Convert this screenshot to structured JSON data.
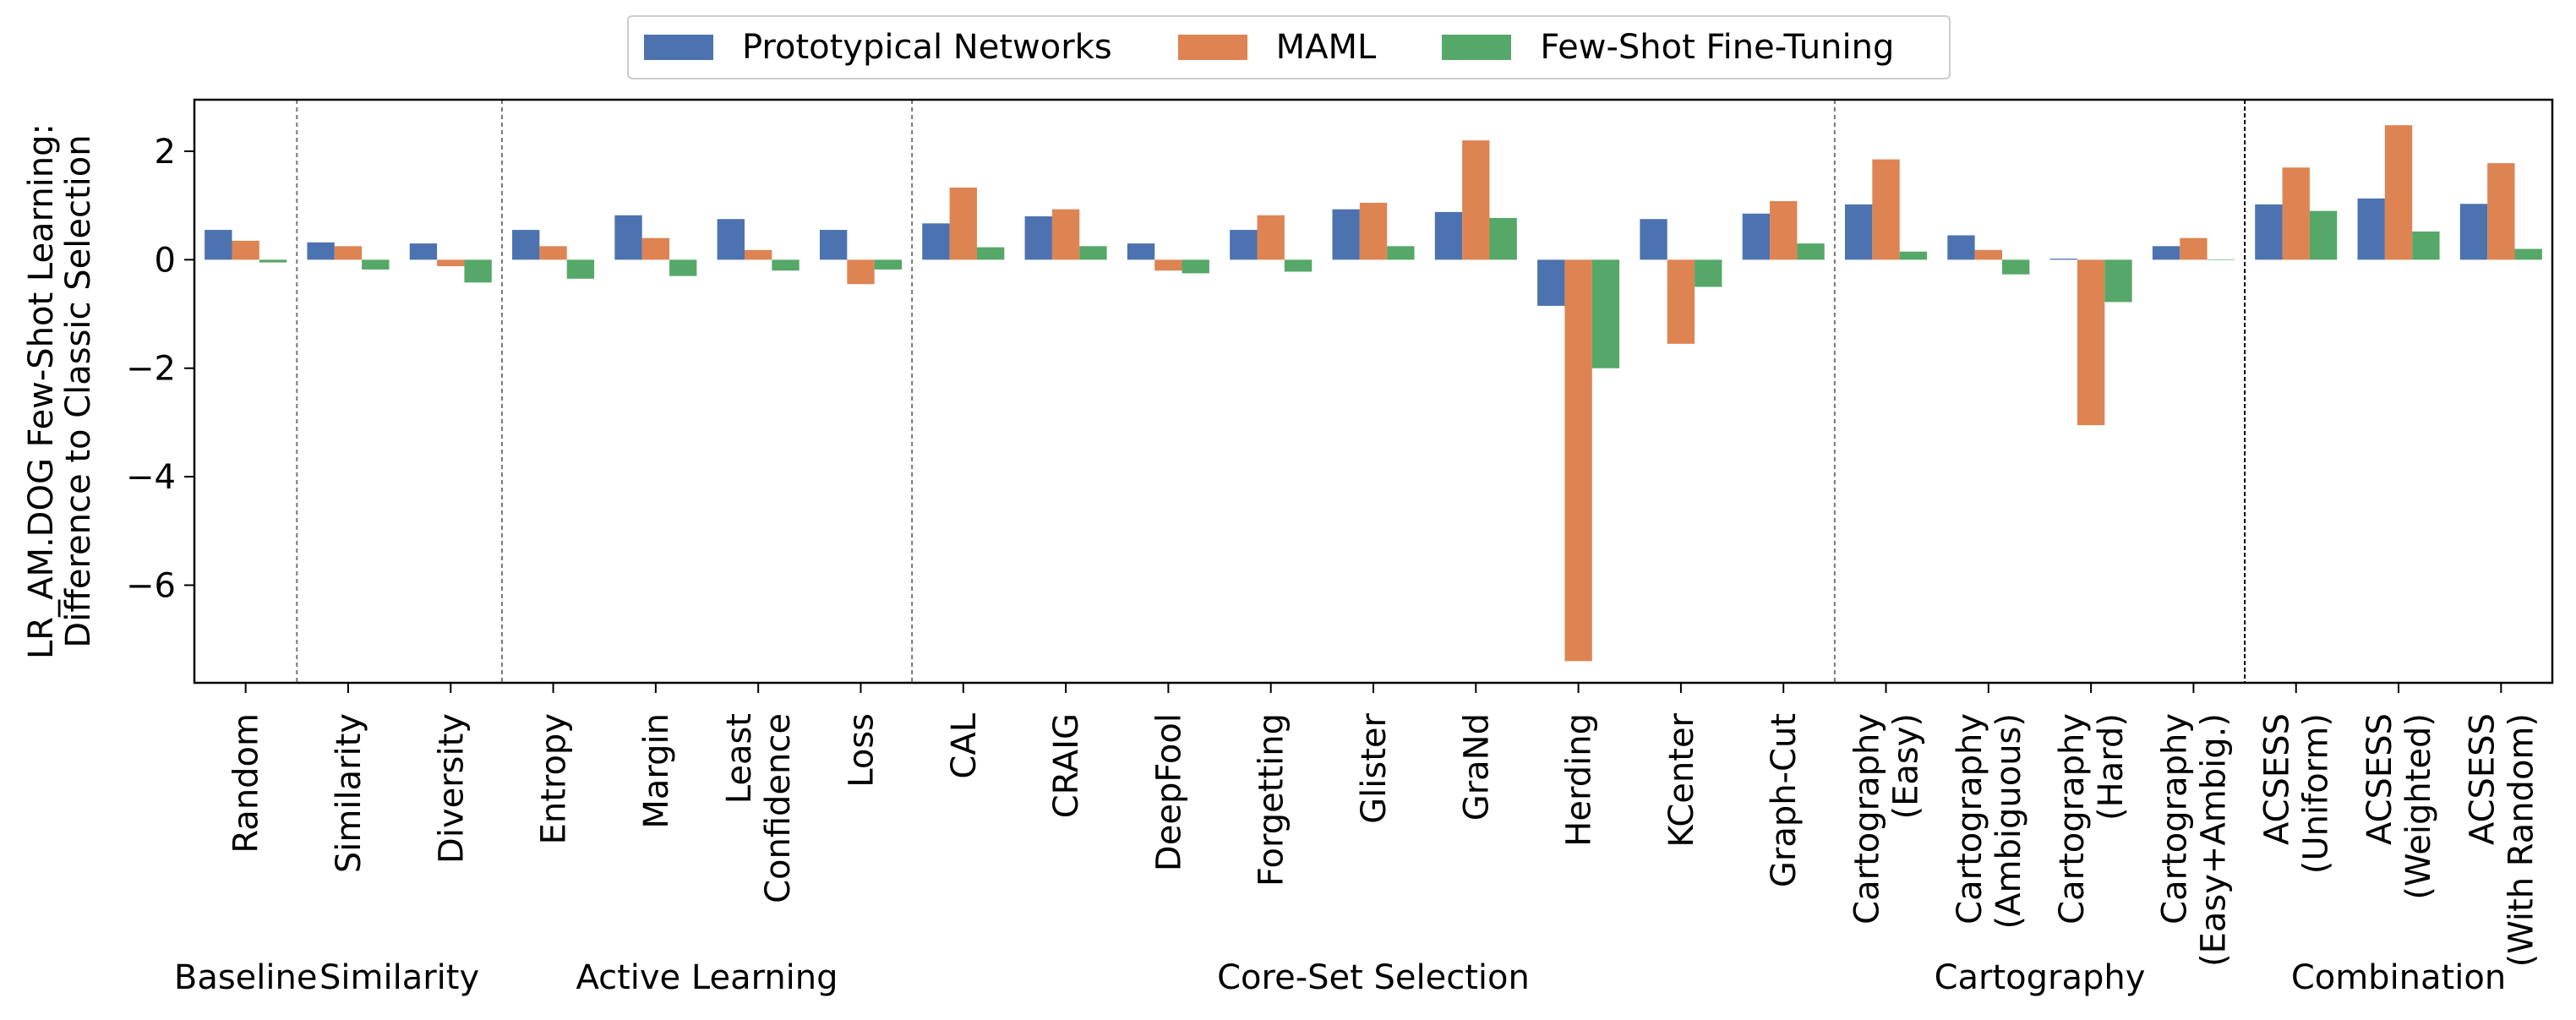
{
  "chart_data": {
    "type": "bar",
    "ylabel_lines": [
      "LR_AM.DOG Few-Shot Learning:",
      "Difference to Classic Selection"
    ],
    "ylim": [
      -7.8,
      2.95
    ],
    "yticks": [
      2,
      0,
      -2,
      -4,
      -6
    ],
    "ytick_labels": [
      "2",
      "0",
      "−2",
      "−4",
      "−6"
    ],
    "categories": [
      {
        "lines": [
          "Random"
        ]
      },
      {
        "lines": [
          "Similarity"
        ]
      },
      {
        "lines": [
          "Diversity"
        ]
      },
      {
        "lines": [
          "Entropy"
        ]
      },
      {
        "lines": [
          "Margin"
        ]
      },
      {
        "lines": [
          "Least",
          "Confidence"
        ]
      },
      {
        "lines": [
          "Loss"
        ]
      },
      {
        "lines": [
          "CAL"
        ]
      },
      {
        "lines": [
          "CRAIG"
        ]
      },
      {
        "lines": [
          "DeepFool"
        ]
      },
      {
        "lines": [
          "Forgetting"
        ]
      },
      {
        "lines": [
          "Glister"
        ]
      },
      {
        "lines": [
          "GraNd"
        ]
      },
      {
        "lines": [
          "Herding"
        ]
      },
      {
        "lines": [
          "KCenter"
        ]
      },
      {
        "lines": [
          "Graph-Cut"
        ]
      },
      {
        "lines": [
          "Cartography",
          "(Easy)"
        ]
      },
      {
        "lines": [
          "Cartography",
          "(Ambiguous)"
        ]
      },
      {
        "lines": [
          "Cartography",
          "(Hard)"
        ]
      },
      {
        "lines": [
          "Cartography",
          "(Easy+Ambig.)"
        ]
      },
      {
        "lines": [
          "ACSESS",
          "(Uniform)"
        ]
      },
      {
        "lines": [
          "ACSESS",
          "(Weighted)"
        ]
      },
      {
        "lines": [
          "ACSESS",
          "(With Random)"
        ]
      }
    ],
    "series": [
      {
        "name": "Prototypical Networks",
        "color": "#4c72b0",
        "values": [
          0.55,
          0.32,
          0.3,
          0.55,
          0.82,
          0.75,
          0.55,
          0.67,
          0.8,
          0.3,
          0.55,
          0.93,
          0.88,
          -0.85,
          0.75,
          0.85,
          1.02,
          0.45,
          0.02,
          0.25,
          1.02,
          1.13,
          1.03
        ]
      },
      {
        "name": "MAML",
        "color": "#dd8452",
        "values": [
          0.35,
          0.25,
          -0.12,
          0.25,
          0.4,
          0.18,
          -0.45,
          1.33,
          0.93,
          -0.2,
          0.82,
          1.05,
          2.2,
          -7.4,
          -1.55,
          1.08,
          1.85,
          0.18,
          -3.05,
          0.4,
          1.7,
          2.48,
          1.78
        ]
      },
      {
        "name": "Few-Shot Fine-Tuning",
        "color": "#55a868",
        "values": [
          -0.05,
          -0.18,
          -0.42,
          -0.35,
          -0.3,
          -0.2,
          -0.18,
          0.23,
          0.25,
          -0.25,
          -0.22,
          0.25,
          0.77,
          -2.0,
          -0.5,
          0.3,
          0.15,
          -0.27,
          -0.78,
          0.0,
          0.9,
          0.52,
          0.2
        ]
      }
    ],
    "group_separators": [
      {
        "after_index": 0,
        "style": "dashed"
      },
      {
        "after_index": 2,
        "style": "dashed"
      },
      {
        "after_index": 6,
        "style": "dashed"
      },
      {
        "after_index": 15,
        "style": "dashed"
      },
      {
        "after_index": 19,
        "style": "solid"
      }
    ],
    "groups": [
      {
        "label": "Baseline",
        "from": 0,
        "to": 0
      },
      {
        "label": "Similarity",
        "from": 1,
        "to": 2
      },
      {
        "label": "Active Learning",
        "from": 3,
        "to": 6
      },
      {
        "label": "Core-Set Selection",
        "from": 7,
        "to": 15
      },
      {
        "label": "Cartography",
        "from": 16,
        "to": 19
      },
      {
        "label": "Combination",
        "from": 20,
        "to": 22
      }
    ],
    "legend_position": "top-center"
  }
}
